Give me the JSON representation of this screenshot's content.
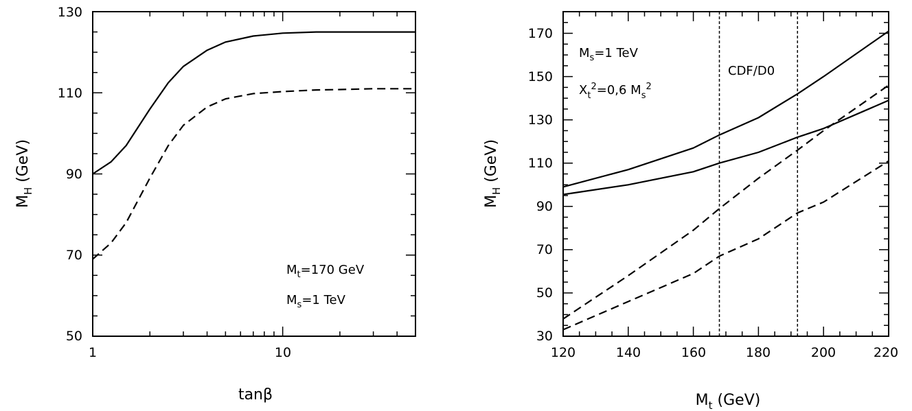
{
  "chart_data": [
    {
      "type": "line",
      "xscale": "log",
      "xlim": [
        1,
        50
      ],
      "ylim": [
        50,
        130
      ],
      "xticks": [
        "1",
        "10"
      ],
      "yticks": [
        "50",
        "70",
        "90",
        "110",
        "130"
      ],
      "xlabel": "tanβ",
      "ylabel_main": "M",
      "ylabel_sub": "H",
      "ylabel_tail": " (GeV)",
      "annotations": [
        {
          "main": "M",
          "sub": "t",
          "tail": "=170  GeV"
        },
        {
          "main": "M",
          "sub": "s",
          "tail": "=1  TeV"
        }
      ],
      "series": [
        {
          "style": "solid",
          "x": [
            1,
            1.25,
            1.5,
            2,
            2.5,
            3,
            4,
            5,
            7,
            10,
            15,
            20,
            30,
            50
          ],
          "y": [
            90,
            93,
            97,
            106,
            112.5,
            116.5,
            120.5,
            122.5,
            124,
            124.7,
            125,
            125,
            125,
            125
          ]
        },
        {
          "style": "dashed",
          "x": [
            1,
            1.25,
            1.5,
            2,
            2.5,
            3,
            4,
            5,
            7,
            10,
            15,
            20,
            30,
            50
          ],
          "y": [
            69,
            73,
            78,
            89,
            97,
            102,
            106.5,
            108.5,
            109.8,
            110.3,
            110.7,
            110.8,
            111,
            111
          ]
        }
      ]
    },
    {
      "type": "line",
      "xlim": [
        120,
        220
      ],
      "ylim": [
        30,
        180
      ],
      "xticks": [
        "120",
        "140",
        "160",
        "180",
        "200",
        "220"
      ],
      "yticks": [
        "30",
        "50",
        "70",
        "90",
        "110",
        "130",
        "150",
        "170"
      ],
      "xlabel_main": "M",
      "xlabel_sub": "t",
      "xlabel_tail": " (GeV)",
      "ylabel_main": "M",
      "ylabel_sub": "H",
      "ylabel_tail": " (GeV)",
      "annotations": [
        {
          "main": "M",
          "sub": "s",
          "tail": "=1  TeV"
        },
        {
          "main": "X",
          "sub": "t",
          "sup": "2",
          "mid": "=0,6  M",
          "sub2": "s",
          "sup2": "2"
        }
      ],
      "band_label": "CDF/D0",
      "vlines": [
        168,
        192
      ],
      "series": [
        {
          "style": "solid",
          "x": [
            120,
            140,
            160,
            168,
            180,
            192,
            200,
            220
          ],
          "y": [
            99,
            107,
            117,
            123,
            131,
            142,
            150,
            171
          ]
        },
        {
          "style": "solid",
          "x": [
            120,
            140,
            160,
            168,
            180,
            192,
            200,
            220
          ],
          "y": [
            95.5,
            100,
            106,
            110,
            115,
            122,
            126,
            139
          ]
        },
        {
          "style": "dashed",
          "x": [
            120,
            140,
            160,
            168,
            180,
            192,
            200,
            220
          ],
          "y": [
            38,
            58,
            79,
            89,
            103,
            116,
            125,
            146
          ]
        },
        {
          "style": "dashed",
          "x": [
            120,
            140,
            160,
            168,
            180,
            192,
            200,
            220
          ],
          "y": [
            33,
            46,
            59,
            67,
            75,
            87,
            92,
            111
          ]
        }
      ]
    }
  ]
}
